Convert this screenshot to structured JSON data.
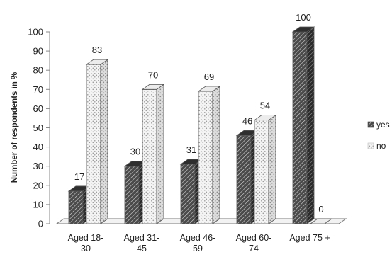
{
  "chart_data": {
    "type": "bar",
    "style": "3d-clustered-column",
    "categories": [
      [
        "Aged 18-",
        "30"
      ],
      [
        "Aged 31-",
        "45"
      ],
      [
        "Aged 46-",
        "59"
      ],
      [
        "Aged 60-",
        "74"
      ],
      [
        "Aged 75 +"
      ]
    ],
    "series": [
      {
        "name": "yes",
        "values": [
          17,
          30,
          31,
          46,
          100
        ],
        "pattern": "diagonal-hatch-dark"
      },
      {
        "name": "no",
        "values": [
          83,
          70,
          69,
          54,
          0
        ],
        "pattern": "dotted-light"
      }
    ],
    "ylabel": "Number of respondents in %",
    "ylim": [
      0,
      100
    ],
    "yticks": [
      "0",
      "10",
      "20",
      "30",
      "40",
      "50",
      "60",
      "70",
      "80",
      "90",
      "100"
    ],
    "grid": false,
    "legend_position": "right",
    "colors": {
      "yes": "#3a3a3a",
      "no": "#e6e6e6",
      "outline": "#555555",
      "floor": "#f2f2f2"
    }
  }
}
